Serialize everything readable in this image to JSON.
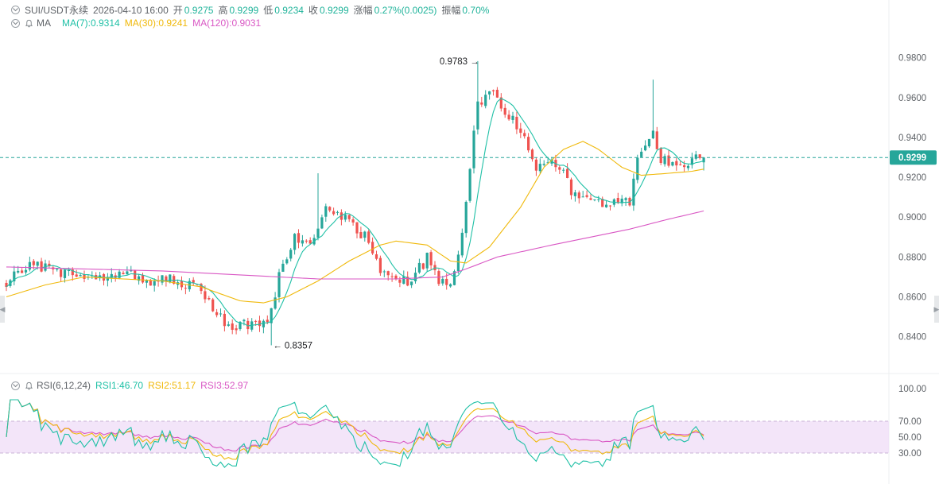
{
  "header": {
    "symbol": "SUI/USDT永续",
    "datetime": "2026-04-10 16:00",
    "open_label": "开",
    "open": "0.9275",
    "high_label": "高",
    "high": "0.9299",
    "low_label": "低",
    "low": "0.9234",
    "close_label": "收",
    "close": "0.9299",
    "change_label": "涨幅",
    "change": "0.27%(0.0025)",
    "amplitude_label": "振幅",
    "amplitude": "0.70%"
  },
  "ma_legend": {
    "label": "MA",
    "ma7": "MA(7):0.9314",
    "ma30": "MA(30):0.9241",
    "ma120": "MA(120):0.9031"
  },
  "rsi_legend": {
    "label": "RSI(6,12,24)",
    "rsi1": "RSI1:46.70",
    "rsi2": "RSI2:51.17",
    "rsi3": "RSI3:52.97"
  },
  "colors": {
    "up": "#26a69a",
    "down": "#ef5350",
    "ma7": "#1fc0a6",
    "ma30": "#f0b90b",
    "ma120": "#d957c4",
    "rsi_band": "#efdcf7",
    "price_tag": "#26a69a"
  },
  "chart_data": {
    "type": "candlestick",
    "price_axis": {
      "ticks": [
        "0.9800",
        "0.9600",
        "0.9400",
        "0.9200",
        "0.9000",
        "0.8800",
        "0.8600",
        "0.8400"
      ],
      "tick_values": [
        0.98,
        0.96,
        0.94,
        0.92,
        0.9,
        0.88,
        0.86,
        0.84
      ],
      "range": [
        0.8315,
        0.993
      ]
    },
    "last_price": 0.9299,
    "last_price_label": "0.9299",
    "max_annotation": {
      "value": 0.9783,
      "label": "0.9783",
      "index": 121
    },
    "min_annotation": {
      "value": 0.8357,
      "label": "0.8357",
      "index": 68
    },
    "candle_count": 180,
    "anchors": [
      [
        0,
        0.868
      ],
      [
        6,
        0.876
      ],
      [
        12,
        0.873
      ],
      [
        18,
        0.871
      ],
      [
        24,
        0.87
      ],
      [
        30,
        0.872
      ],
      [
        36,
        0.868
      ],
      [
        42,
        0.869
      ],
      [
        48,
        0.866
      ],
      [
        52,
        0.857
      ],
      [
        57,
        0.845
      ],
      [
        62,
        0.846
      ],
      [
        67,
        0.848
      ],
      [
        70,
        0.87
      ],
      [
        74,
        0.89
      ],
      [
        78,
        0.888
      ],
      [
        82,
        0.905
      ],
      [
        86,
        0.9
      ],
      [
        92,
        0.89
      ],
      [
        96,
        0.874
      ],
      [
        100,
        0.868
      ],
      [
        104,
        0.868
      ],
      [
        108,
        0.88
      ],
      [
        111,
        0.866
      ],
      [
        114,
        0.868
      ],
      [
        116,
        0.88
      ],
      [
        118,
        0.91
      ],
      [
        121,
        0.956
      ],
      [
        124,
        0.965
      ],
      [
        128,
        0.952
      ],
      [
        132,
        0.945
      ],
      [
        136,
        0.925
      ],
      [
        140,
        0.928
      ],
      [
        143,
        0.922
      ],
      [
        146,
        0.91
      ],
      [
        150,
        0.907
      ],
      [
        156,
        0.909
      ],
      [
        160,
        0.907
      ],
      [
        162,
        0.93
      ],
      [
        166,
        0.942
      ],
      [
        168,
        0.93
      ],
      [
        172,
        0.924
      ],
      [
        176,
        0.93
      ],
      [
        179,
        0.9299
      ]
    ],
    "ma30_anchors": [
      [
        0,
        0.86
      ],
      [
        10,
        0.866
      ],
      [
        20,
        0.87
      ],
      [
        30,
        0.869
      ],
      [
        40,
        0.868
      ],
      [
        50,
        0.865
      ],
      [
        60,
        0.858
      ],
      [
        66,
        0.857
      ],
      [
        72,
        0.86
      ],
      [
        80,
        0.868
      ],
      [
        88,
        0.878
      ],
      [
        96,
        0.886
      ],
      [
        100,
        0.888
      ],
      [
        108,
        0.886
      ],
      [
        114,
        0.878
      ],
      [
        118,
        0.877
      ],
      [
        124,
        0.885
      ],
      [
        132,
        0.905
      ],
      [
        138,
        0.925
      ],
      [
        143,
        0.934
      ],
      [
        148,
        0.938
      ],
      [
        152,
        0.934
      ],
      [
        158,
        0.925
      ],
      [
        163,
        0.921
      ],
      [
        170,
        0.922
      ],
      [
        176,
        0.923
      ],
      [
        179,
        0.9241
      ]
    ],
    "ma120_anchors": [
      [
        0,
        0.875
      ],
      [
        20,
        0.874
      ],
      [
        40,
        0.873
      ],
      [
        60,
        0.871
      ],
      [
        80,
        0.869
      ],
      [
        100,
        0.869
      ],
      [
        112,
        0.87
      ],
      [
        118,
        0.874
      ],
      [
        126,
        0.88
      ],
      [
        140,
        0.886
      ],
      [
        150,
        0.89
      ],
      [
        160,
        0.894
      ],
      [
        170,
        0.899
      ],
      [
        179,
        0.9031
      ]
    ],
    "rsi_axis": {
      "ticks": [
        "100.00",
        "70.00",
        "50.00",
        "30.00"
      ],
      "tick_values": [
        100,
        70,
        50,
        30
      ],
      "band": [
        30,
        70
      ],
      "range": [
        0,
        100
      ]
    },
    "rsi_current": {
      "rsi1": 46.7,
      "rsi2": 51.17,
      "rsi3": 52.97
    }
  }
}
